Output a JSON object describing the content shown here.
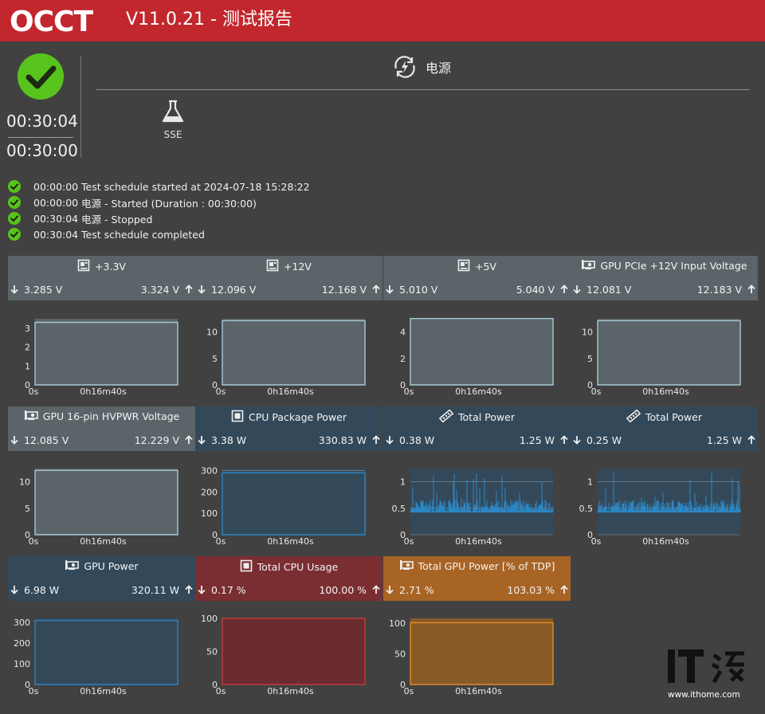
{
  "app": {
    "logo_text": "OCCT",
    "title": "V11.0.21 - 测试报告"
  },
  "status": {
    "elapsed": "00:30:04",
    "duration": "00:30:00"
  },
  "tabs": {
    "power_label": "电源",
    "sse_label": "SSE"
  },
  "log": [
    {
      "time": "00:00:00",
      "text": "Test schedule started at 2024-07-18 15:28:22"
    },
    {
      "time": "00:00:00",
      "text": "电源 - Started (Duration : 00:30:00)"
    },
    {
      "time": "00:30:04",
      "text": "电源 - Stopped"
    },
    {
      "time": "00:30:04",
      "text": "Test schedule completed"
    }
  ],
  "colors": {
    "grey": "#5b6468",
    "blue": "#33495a",
    "red": "#7a2e31",
    "orange": "#a86424",
    "header_red": "#c1272d",
    "accent_blue": "#2b86c4"
  },
  "x_labels": [
    "0s",
    "0h16m40s"
  ],
  "sensors": [
    {
      "title": "+3.3V",
      "icon": "board-icon",
      "min": "3.285 V",
      "max": "3.324 V",
      "theme": "grey",
      "y_ticks": [
        "0",
        "1",
        "2",
        "3"
      ],
      "y_max": 3.5,
      "style": "flat",
      "level": 3.31
    },
    {
      "title": "+12V",
      "icon": "board-icon",
      "min": "12.096 V",
      "max": "12.168 V",
      "theme": "grey",
      "y_ticks": [
        "0",
        "5",
        "10"
      ],
      "y_max": 12.5,
      "style": "flat",
      "level": 12.13
    },
    {
      "title": "+5V",
      "icon": "board-icon",
      "min": "5.010 V",
      "max": "5.040 V",
      "theme": "grey",
      "y_ticks": [
        "0",
        "2",
        "4"
      ],
      "y_max": 5.0,
      "style": "flat",
      "level": 5.02
    },
    {
      "title": "GPU PCIe +12V Input Voltage",
      "icon": "gpu-icon",
      "min": "12.081 V",
      "max": "12.183 V",
      "theme": "grey",
      "y_ticks": [
        "0",
        "5",
        "10"
      ],
      "y_max": 12.5,
      "style": "flat",
      "level": 12.13
    },
    {
      "title": "GPU 16-pin HVPWR Voltage",
      "icon": "gpu-icon",
      "min": "12.085 V",
      "max": "12.229 V",
      "theme": "grey",
      "y_ticks": [
        "0",
        "5",
        "10"
      ],
      "y_max": 12.5,
      "style": "flat",
      "level": 12.15
    },
    {
      "title": "CPU Package Power",
      "icon": "cpu-icon",
      "min": "3.38 W",
      "max": "330.83 W",
      "theme": "blue",
      "y_ticks": [
        "0",
        "100",
        "200",
        "300"
      ],
      "y_max": 310,
      "style": "flat",
      "level": 290
    },
    {
      "title": "Total Power",
      "icon": "ram-icon",
      "min": "0.38 W",
      "max": "1.25 W",
      "theme": "blue",
      "y_ticks": [
        "0",
        "0.5",
        "1"
      ],
      "y_max": 1.25,
      "style": "noise",
      "level": 0.55
    },
    {
      "title": "Total Power",
      "icon": "ram-icon",
      "min": "0.25 W",
      "max": "1.25 W",
      "theme": "blue",
      "y_ticks": [
        "0",
        "0.5",
        "1"
      ],
      "y_max": 1.25,
      "style": "noise",
      "level": 0.55
    },
    {
      "title": "GPU Power",
      "icon": "gpu-icon",
      "min": "6.98 W",
      "max": "320.11 W",
      "theme": "blue",
      "y_ticks": [
        "0",
        "100",
        "200",
        "300"
      ],
      "y_max": 320,
      "style": "flat",
      "level": 310
    },
    {
      "title": "Total CPU Usage",
      "icon": "cpu-icon",
      "min": "0.17 %",
      "max": "100.00 %",
      "theme": "red",
      "y_ticks": [
        "0",
        "50",
        "100"
      ],
      "y_max": 100,
      "style": "flat",
      "level": 100
    },
    {
      "title": "Total GPU Power [% of TDP]",
      "icon": "gpu-icon",
      "min": "2.71 %",
      "max": "103.03 %",
      "theme": "orange",
      "y_ticks": [
        "0",
        "50",
        "100"
      ],
      "y_max": 108,
      "style": "flat",
      "level": 101
    }
  ],
  "watermark": {
    "brand": "IT之家",
    "site": "www.ithome.com"
  }
}
